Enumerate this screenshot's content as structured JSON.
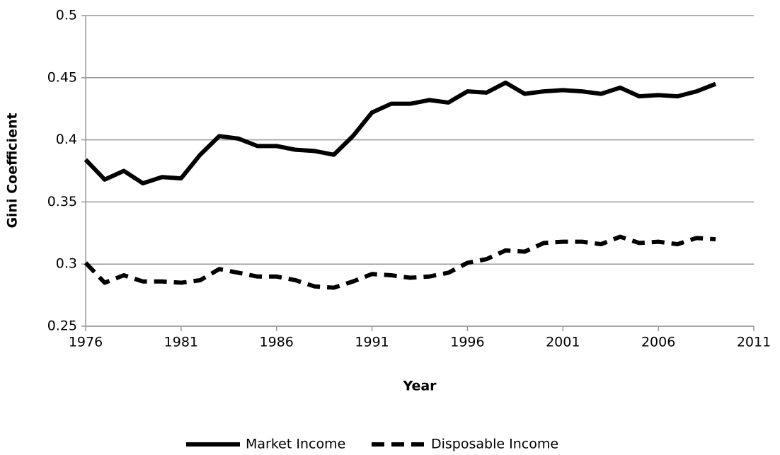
{
  "chart_data": {
    "type": "line",
    "x_label": "Year",
    "y_label": "Gini Coefficient",
    "x": [
      1976,
      1977,
      1978,
      1979,
      1980,
      1981,
      1982,
      1983,
      1984,
      1985,
      1986,
      1987,
      1988,
      1989,
      1990,
      1991,
      1992,
      1993,
      1994,
      1995,
      1996,
      1997,
      1998,
      1999,
      2000,
      2001,
      2002,
      2003,
      2004,
      2005,
      2006,
      2007,
      2008,
      2009
    ],
    "series": [
      {
        "name": "Market Income",
        "color": "#000000",
        "dash": "solid",
        "values": [
          0.384,
          0.368,
          0.375,
          0.365,
          0.37,
          0.369,
          0.388,
          0.403,
          0.401,
          0.395,
          0.395,
          0.392,
          0.391,
          0.388,
          0.403,
          0.422,
          0.429,
          0.429,
          0.432,
          0.43,
          0.439,
          0.438,
          0.446,
          0.437,
          0.439,
          0.44,
          0.439,
          0.437,
          0.442,
          0.435,
          0.436,
          0.435,
          0.439,
          0.445
        ]
      },
      {
        "name": "Disposable Income",
        "color": "#000000",
        "dash": "dashed",
        "values": [
          0.301,
          0.285,
          0.291,
          0.286,
          0.286,
          0.285,
          0.287,
          0.296,
          0.293,
          0.29,
          0.29,
          0.287,
          0.282,
          0.281,
          0.286,
          0.292,
          0.291,
          0.289,
          0.29,
          0.293,
          0.301,
          0.304,
          0.311,
          0.31,
          0.317,
          0.318,
          0.318,
          0.316,
          0.322,
          0.317,
          0.318,
          0.316,
          0.321,
          0.32
        ]
      }
    ],
    "xlim": [
      1976,
      2011
    ],
    "xticks": [
      1976,
      1981,
      1986,
      1991,
      1996,
      2001,
      2006,
      2011
    ],
    "ylim": [
      0.25,
      0.5
    ],
    "yticks": [
      0.25,
      0.3,
      0.35,
      0.4,
      0.45,
      0.5
    ],
    "grid": true,
    "legend": "bottom"
  }
}
